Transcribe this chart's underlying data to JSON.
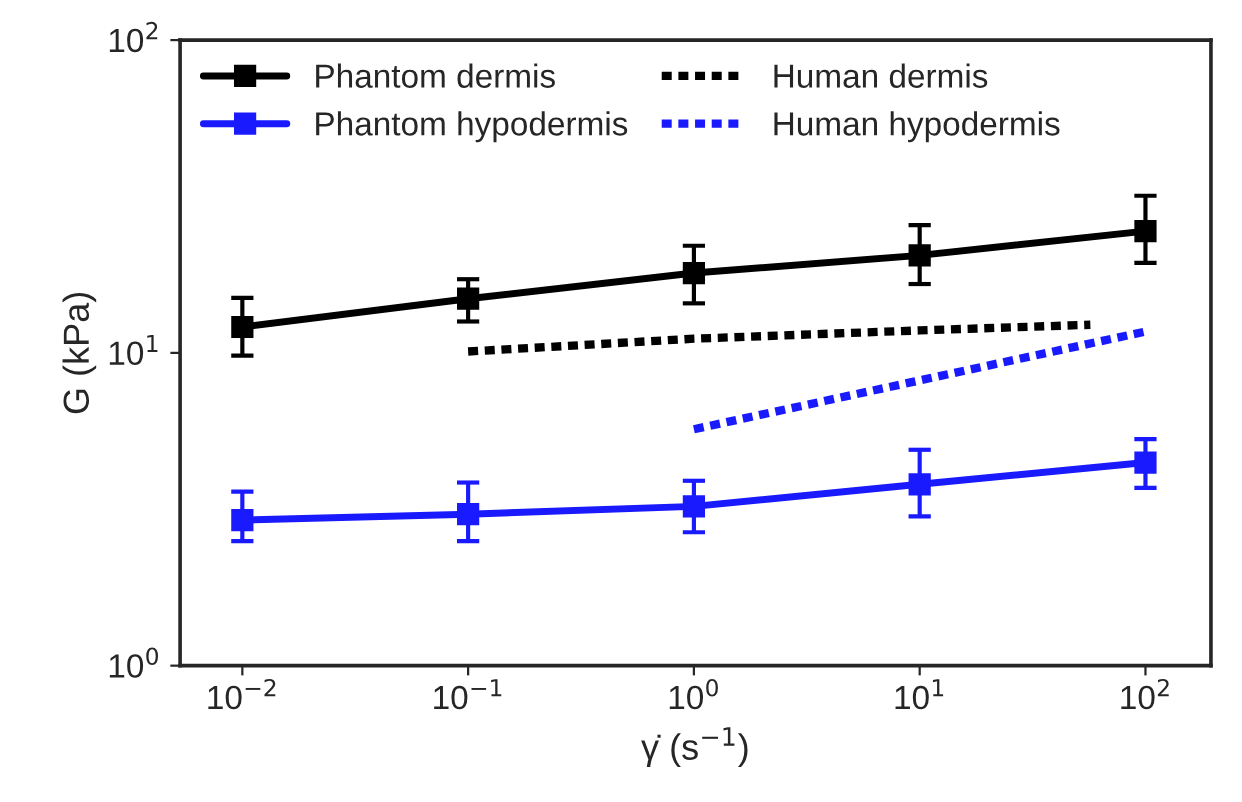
{
  "chart_data": {
    "type": "line",
    "xlabel": "γ̇ (s$^{−1}$)",
    "ylabel": "G (kPa)",
    "log": "xy",
    "grid": false,
    "legend": "top left",
    "xlim": [
      0.0053,
      195
    ],
    "ylim": [
      1,
      100
    ],
    "xticks": [
      {
        "value": 0.01,
        "label": "10$^{−2}$"
      },
      {
        "value": 0.1,
        "label": "10$^{−1}$"
      },
      {
        "value": 1,
        "label": "10$^{0}$"
      },
      {
        "value": 10,
        "label": "10$^{1}$"
      },
      {
        "value": 100,
        "label": "10$^{2}$"
      }
    ],
    "yticks": [
      {
        "value": 1,
        "label": "10$^{0}$"
      },
      {
        "value": 10,
        "label": "10$^{1}$"
      },
      {
        "value": 100,
        "label": "10$^{2}$"
      }
    ],
    "series": [
      {
        "name": "Phantom dermis",
        "color": "#000000",
        "marker": "square",
        "line_style": "solid",
        "x": [
          0.01,
          0.1,
          1,
          10,
          100
        ],
        "values": [
          12.1,
          14.9,
          18,
          20.5,
          24.5
        ],
        "errors": [
          [
            9.8,
            15.0
          ],
          [
            12.6,
            17.2
          ],
          [
            14.4,
            22
          ],
          [
            16.6,
            25.6
          ],
          [
            19.4,
            31.8
          ]
        ]
      },
      {
        "name": "Human dermis",
        "color": "#000000",
        "marker": "none",
        "line_style": "dotted",
        "x": [
          0.1,
          1,
          10,
          57
        ],
        "values": [
          10.1,
          11.1,
          11.8,
          12.3
        ]
      },
      {
        "name": "Phantom hypodermis",
        "color": "#1a1aff",
        "marker": "square",
        "line_style": "solid",
        "x": [
          0.01,
          0.1,
          1,
          10,
          100
        ],
        "values": [
          2.92,
          3.05,
          3.23,
          3.8,
          4.46
        ],
        "errors": [
          [
            2.5,
            3.6
          ],
          [
            2.5,
            3.85
          ],
          [
            2.67,
            3.9
          ],
          [
            3.0,
            4.9
          ],
          [
            3.7,
            5.3
          ]
        ]
      },
      {
        "name": "Human hypodermis",
        "color": "#1a1aff",
        "marker": "none",
        "line_style": "dotted",
        "x": [
          1,
          100
        ],
        "values": [
          5.7,
          11.7
        ]
      }
    ]
  }
}
